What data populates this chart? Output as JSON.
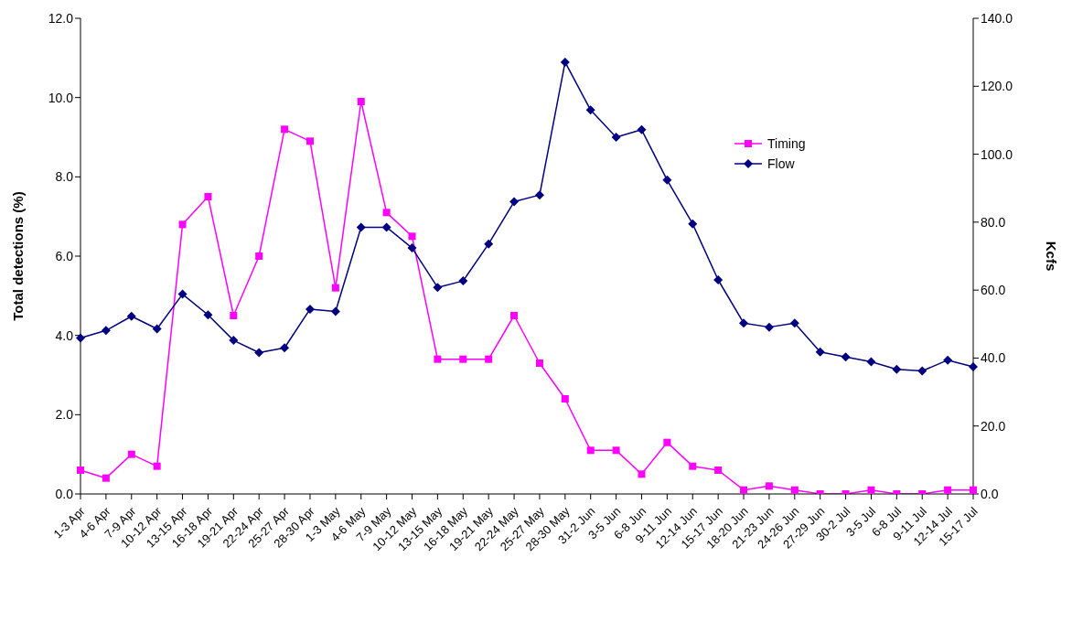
{
  "chart_data": {
    "type": "line",
    "ylabel": "Total detections (%)",
    "y2label": "Kcfs",
    "categories": [
      "1-3 Apr",
      "4-6 Apr",
      "7-9 Apr",
      "10-12 Apr",
      "13-15 Apr",
      "16-18 Apr",
      "19-21 Apr",
      "22-24 Apr",
      "25-27 Apr",
      "28-30 Apr",
      "1-3 May",
      "4-6 May",
      "7-9 May",
      "10-12 May",
      "13-15 May",
      "16-18 May",
      "19-21 May",
      "22-24 May",
      "25-27 May",
      "28-30 May",
      "31-2 Jun",
      "3-5 Jun",
      "6-8 Jun",
      "9-11 Jun",
      "12-14 Jun",
      "15-17 Jun",
      "18-20 Jun",
      "21-23 Jun",
      "24-26 Jun",
      "27-29 Jun",
      "30-2 Jul",
      "3-5 Jul",
      "6-8 Jul",
      "9-11 Jul",
      "12-14 Jul",
      "15-17 Jul"
    ],
    "series": [
      {
        "name": "Timing",
        "color": "#ff00ff",
        "marker": "square",
        "values": [
          0.6,
          0.4,
          1.0,
          0.7,
          6.8,
          7.5,
          4.5,
          6.0,
          9.2,
          8.9,
          5.2,
          9.9,
          7.1,
          6.5,
          3.4,
          3.4,
          3.4,
          4.5,
          3.3,
          2.4,
          1.1,
          1.1,
          0.5,
          1.3,
          0.7,
          0.6,
          0.1,
          0.2,
          0.1,
          0.0,
          0.0,
          0.1,
          0.0,
          0.0,
          0.1,
          0.1
        ]
      },
      {
        "name": "Flow",
        "color": "#000080",
        "marker": "diamond",
        "axis": "y2",
        "values": [
          45.9,
          48.1,
          52.3,
          48.6,
          58.8,
          52.7,
          45.2,
          41.6,
          43.0,
          54.4,
          53.7,
          78.5,
          78.5,
          72.4,
          60.8,
          62.7,
          73.6,
          86.0,
          88.0,
          127.1,
          113.0,
          105.0,
          107.2,
          92.4,
          79.5,
          63.0,
          50.3,
          49.1,
          50.3,
          41.8,
          40.3,
          38.9,
          36.7,
          36.2,
          39.4,
          37.4
        ]
      }
    ],
    "ylim": [
      0,
      12
    ],
    "yticks": [
      {
        "value": 0,
        "label": "0.0"
      },
      {
        "value": 2,
        "label": "2.0"
      },
      {
        "value": 4,
        "label": "4.0"
      },
      {
        "value": 6,
        "label": "6.0"
      },
      {
        "value": 8,
        "label": "8.0"
      },
      {
        "value": 10,
        "label": "10.0"
      },
      {
        "value": 12,
        "label": "12.0"
      }
    ],
    "y2lim": [
      0,
      140
    ],
    "y2ticks": [
      {
        "value": 0,
        "label": "0.0"
      },
      {
        "value": 20,
        "label": "20.0"
      },
      {
        "value": 40,
        "label": "40.0"
      },
      {
        "value": 60,
        "label": "60.0"
      },
      {
        "value": 80,
        "label": "80.0"
      },
      {
        "value": 100,
        "label": "100.0"
      },
      {
        "value": 120,
        "label": "120.0"
      },
      {
        "value": 140,
        "label": "140.0"
      }
    ],
    "grid": false,
    "legend": "top right",
    "line_style": "solid"
  }
}
